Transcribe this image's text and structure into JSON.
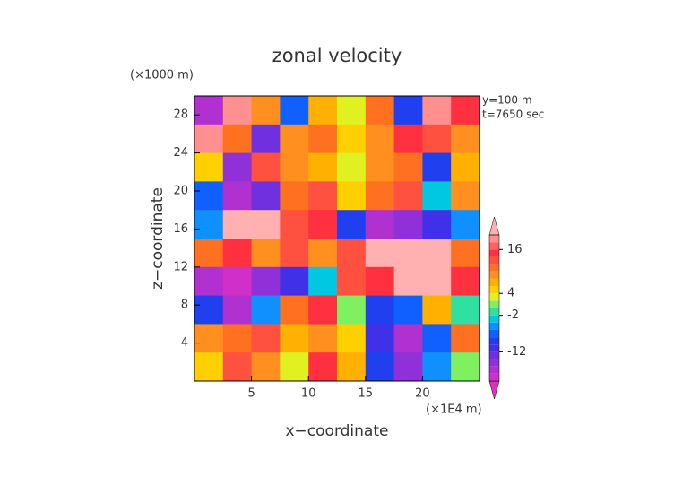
{
  "chart_data": {
    "type": "contour",
    "title": "zonal velocity",
    "y_unit": "(×1000 m)",
    "x_unit": "(×1E4 m)",
    "annotations": [
      "y=100 m",
      "t=7650 sec"
    ],
    "xlabel": "x−coordinate",
    "ylabel": "z−coordinate",
    "xlim": [
      0,
      25
    ],
    "ylim": [
      0,
      30
    ],
    "xticks": [
      5,
      10,
      15,
      20
    ],
    "yticks": [
      4,
      8,
      12,
      16,
      20,
      24,
      28
    ],
    "x": [
      1.25,
      3.75,
      6.25,
      8.75,
      11.25,
      13.75,
      16.25,
      18.75,
      21.25,
      23.75
    ],
    "y": [
      28.5,
      25.5,
      22.5,
      19.5,
      16.5,
      13.5,
      10.5,
      7.5,
      4.5,
      1.5
    ],
    "z": [
      [
        -18,
        18,
        8,
        -8,
        6,
        2,
        10,
        -10,
        18,
        14
      ],
      [
        18,
        10,
        -14,
        8,
        10,
        4,
        8,
        14,
        12,
        8
      ],
      [
        4,
        -16,
        12,
        8,
        6,
        2,
        8,
        10,
        -10,
        6
      ],
      [
        -8,
        -18,
        -14,
        10,
        12,
        4,
        10,
        12,
        -4,
        8
      ],
      [
        -6,
        20,
        20,
        12,
        14,
        -10,
        -18,
        -16,
        -12,
        -6
      ],
      [
        10,
        14,
        8,
        12,
        8,
        12,
        20,
        20,
        20,
        10
      ],
      [
        -18,
        -20,
        -16,
        -12,
        -4,
        12,
        14,
        20,
        20,
        14
      ],
      [
        -10,
        -18,
        -6,
        10,
        14,
        0,
        -10,
        -8,
        6,
        -2
      ],
      [
        8,
        10,
        12,
        6,
        8,
        4,
        -12,
        -18,
        -8,
        10
      ],
      [
        4,
        12,
        8,
        2,
        14,
        6,
        -10,
        -16,
        -6,
        0
      ]
    ],
    "colorbar": {
      "levels": [
        -20,
        -18,
        -16,
        -14,
        -12,
        -10,
        -8,
        -6,
        -4,
        -2,
        0,
        2,
        4,
        6,
        8,
        10,
        12,
        14,
        16,
        18,
        20
      ],
      "ticks": [
        16,
        4,
        -2,
        -12
      ],
      "colors": [
        "#e030c0",
        "#d030c8",
        "#b030d0",
        "#9030d8",
        "#7030e0",
        "#4030e8",
        "#2040f0",
        "#1060ff",
        "#1090ff",
        "#00c8e0",
        "#30e0a0",
        "#80f060",
        "#e0f020",
        "#ffd000",
        "#ffb000",
        "#ff9020",
        "#ff7020",
        "#ff5040",
        "#ff3040",
        "#ff6060",
        "#ff9090",
        "#ffb0b0"
      ]
    }
  }
}
